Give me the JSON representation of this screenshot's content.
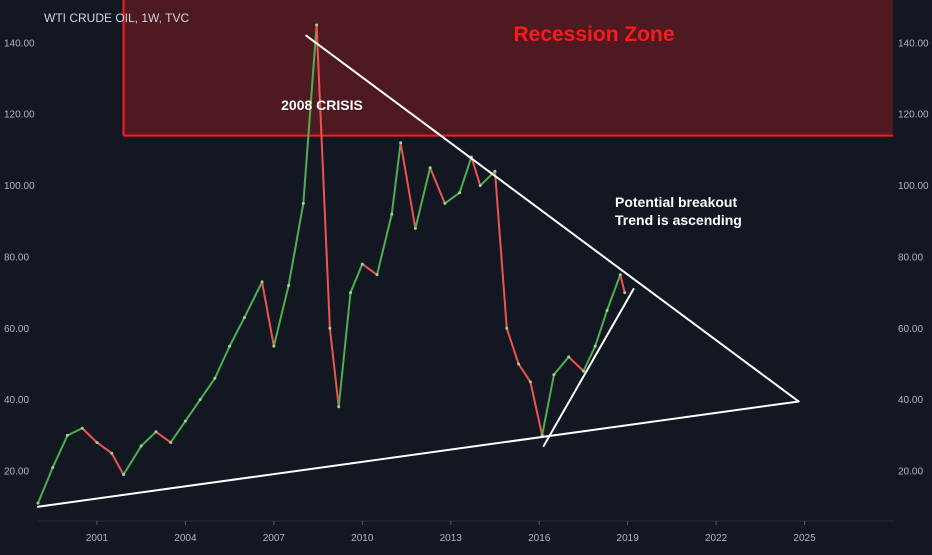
{
  "header": {
    "title": "WTI CRUDE OIL, 1W, TVC"
  },
  "annotations": {
    "recession_zone": "Recession Zone",
    "crisis": "2008 CRISIS",
    "breakout_line1": "Potential breakout",
    "breakout_line2": "Trend is ascending"
  },
  "colors": {
    "background": "#131722",
    "recession_fill": "#5a1a22",
    "recession_border": "#ff1a1a",
    "recession_text": "#ff1a1a",
    "up_candle": "#4caf50",
    "down_candle": "#ef5350",
    "trendline": "#ffffff",
    "axis_text": "#b2b5be"
  },
  "chart_data": {
    "type": "line",
    "title": "WTI CRUDE OIL, 1W, TVC",
    "x_unit": "year",
    "xlim": [
      1999.0,
      2028.0
    ],
    "ylim": [
      6,
      152
    ],
    "x_ticks": [
      "2001",
      "2004",
      "2007",
      "2010",
      "2013",
      "2016",
      "2019",
      "2022",
      "2025"
    ],
    "y_ticks": [
      "20.00",
      "40.00",
      "60.00",
      "80.00",
      "100.00",
      "120.00",
      "140.00"
    ],
    "grid": false,
    "series": [
      {
        "x": [
          1999.0,
          1999.5,
          2000.0,
          2000.5,
          2001.0,
          2001.5,
          2001.9,
          2002.5,
          2003.0,
          2003.5,
          2004.0,
          2004.5,
          2005.0,
          2005.5,
          2006.0,
          2006.6,
          2007.0,
          2007.5,
          2008.0,
          2008.45,
          2008.9,
          2009.2,
          2009.6,
          2010.0,
          2010.5,
          2011.0,
          2011.3,
          2011.8,
          2012.3,
          2012.8,
          2013.3,
          2013.7,
          2014.0,
          2014.5,
          2014.9,
          2015.3,
          2015.7,
          2016.1,
          2016.5,
          2017.0,
          2017.5,
          2017.9,
          2018.3,
          2018.75,
          2018.9
        ],
        "values": [
          11,
          21,
          30,
          32,
          28,
          25,
          19,
          27,
          31,
          28,
          34,
          40,
          46,
          55,
          63,
          73,
          55,
          72,
          95,
          145,
          60,
          38,
          70,
          78,
          75,
          92,
          112,
          88,
          105,
          95,
          98,
          108,
          100,
          104,
          60,
          50,
          45,
          30,
          47,
          52,
          48,
          55,
          65,
          75,
          70
        ]
      }
    ],
    "lines": [
      {
        "x": [
          2008.1,
          2019.5
        ],
        "values": [
          142,
          72
        ]
      },
      {
        "x": [
          2016.15,
          2019.2
        ],
        "values": [
          27,
          71
        ]
      },
      {
        "x": [
          1999.0,
          2024.8
        ],
        "values": [
          10,
          39.5
        ]
      },
      {
        "x": [
          2019.5,
          2024.8
        ],
        "values": [
          72,
          39.5
        ]
      }
    ],
    "zones": [
      {
        "label": "Recession Zone",
        "x": [
          2001.9,
          2028.0
        ],
        "values": [
          114,
          152
        ]
      }
    ]
  }
}
